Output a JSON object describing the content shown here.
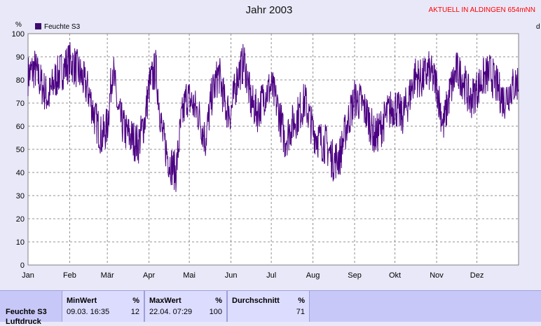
{
  "title": "Jahr 2003",
  "location": "AKTUELL IN ALDINGEN 654mNN",
  "stats": {
    "series_label": "Feuchte S3",
    "series_label2": "Luftdruck",
    "min_label": "MinWert",
    "min_unit": "%",
    "min_time": "09.03. 16:35",
    "min_value": "12",
    "max_label": "MaxWert",
    "max_unit": "%",
    "max_time": "22.04. 07:29",
    "max_value": "100",
    "avg_label": "Durchschnitt",
    "avg_unit": "%",
    "avg_value": "71"
  },
  "chart_data": {
    "type": "line",
    "title": "Jahr 2003",
    "ylabel": "%",
    "right_axis_label": "d",
    "ylim": [
      0,
      100
    ],
    "yticks": [
      0,
      10,
      20,
      30,
      40,
      50,
      60,
      70,
      80,
      90,
      100
    ],
    "x_tick_labels": [
      "Jan",
      "Feb",
      "Mär",
      "Apr",
      "Mai",
      "Jun",
      "Jul",
      "Aug",
      "Sep",
      "Okt",
      "Nov",
      "Dez"
    ],
    "x_range_days": [
      0,
      365
    ],
    "grid": true,
    "legend_position": "top-left",
    "color": "#4b0082",
    "series": [
      {
        "name": "Feuchte S3",
        "x": [
          0,
          5,
          10,
          15,
          20,
          25,
          31,
          35,
          40,
          45,
          50,
          55,
          59,
          63,
          67,
          72,
          77,
          82,
          87,
          90,
          95,
          100,
          105,
          110,
          114,
          118,
          122,
          127,
          132,
          137,
          142,
          147,
          151,
          156,
          161,
          166,
          171,
          176,
          181,
          186,
          191,
          196,
          201,
          206,
          212,
          217,
          222,
          227,
          232,
          237,
          243,
          248,
          253,
          258,
          263,
          268,
          273,
          278,
          283,
          288,
          293,
          298,
          304,
          309,
          314,
          319,
          324,
          329,
          334,
          339,
          344,
          349,
          354,
          359,
          364
        ],
        "values": [
          82,
          85,
          78,
          72,
          80,
          84,
          88,
          86,
          81,
          75,
          63,
          55,
          60,
          86,
          66,
          58,
          55,
          52,
          63,
          77,
          85,
          56,
          45,
          40,
          62,
          73,
          70,
          65,
          54,
          74,
          83,
          68,
          66,
          82,
          88,
          70,
          66,
          74,
          77,
          68,
          54,
          60,
          65,
          71,
          58,
          54,
          52,
          45,
          47,
          60,
          72,
          70,
          64,
          55,
          60,
          66,
          69,
          64,
          71,
          82,
          80,
          84,
          78,
          60,
          75,
          84,
          80,
          71,
          76,
          81,
          83,
          77,
          71,
          76,
          79
        ]
      }
    ]
  }
}
